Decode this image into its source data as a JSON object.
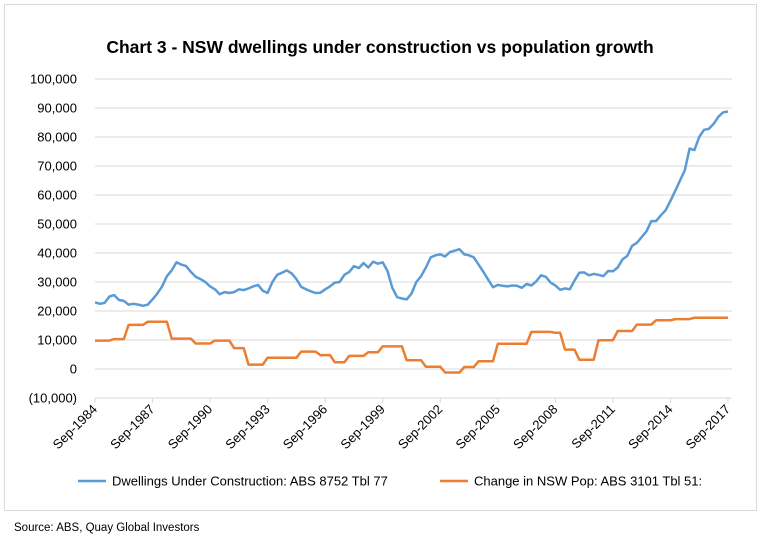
{
  "chart_data": {
    "type": "line",
    "title": "Chart 3 - NSW dwellings under construction vs population growth",
    "source": "Source: ABS, Quay Global Investors",
    "frequency": "quarterly",
    "start": "Sep-1984",
    "end": "Sep-2017",
    "x_tick_labels": [
      "Sep-1984",
      "Sep-1987",
      "Sep-1990",
      "Sep-1993",
      "Sep-1996",
      "Sep-1999",
      "Sep-2002",
      "Sep-2005",
      "Sep-2008",
      "Sep-2011",
      "Sep-2014",
      "Sep-2017"
    ],
    "y_tick_labels": [
      "100,000",
      "90,000",
      "80,000",
      "70,000",
      "60,000",
      "50,000",
      "40,000",
      "30,000",
      "20,000",
      "10,000",
      "0",
      "(10,000)"
    ],
    "ylim": [
      -10000,
      100000
    ],
    "grid": true,
    "legend_position": "bottom",
    "negative_label_color": "#e00000",
    "series": [
      {
        "name": "Dwellings Under Construction: ABS 8752 Tbl 77",
        "color": "#5b9bd5",
        "values": [
          23000,
          22500,
          22800,
          25000,
          25500,
          23800,
          23500,
          22200,
          22500,
          22200,
          21800,
          22200,
          24000,
          26000,
          28500,
          32000,
          34000,
          36800,
          36000,
          35500,
          33500,
          31800,
          31000,
          30000,
          28500,
          27500,
          25800,
          26500,
          26200,
          26500,
          27500,
          27200,
          27800,
          28500,
          29000,
          27000,
          26200,
          30000,
          32500,
          33200,
          34000,
          33000,
          31000,
          28300,
          27500,
          26800,
          26200,
          26300,
          27500,
          28500,
          29800,
          30000,
          32500,
          33500,
          35500,
          34800,
          36500,
          35000,
          37000,
          36300,
          36800,
          33800,
          28000,
          24800,
          24300,
          24000,
          26000,
          30000,
          32000,
          35000,
          38500,
          39200,
          39500,
          38800,
          40300,
          40800,
          41300,
          39500,
          39200,
          38500,
          36000,
          33500,
          30800,
          28200,
          29000,
          28700,
          28500,
          28800,
          28700,
          28000,
          29300,
          28800,
          30200,
          32300,
          31800,
          29800,
          28800,
          27300,
          27800,
          27500,
          30500,
          33200,
          33300,
          32300,
          32800,
          32500,
          32000,
          33800,
          33700,
          35000,
          37800,
          39000,
          42500,
          43500,
          45500,
          47500,
          51000,
          51000,
          53000,
          54800,
          58000,
          61500,
          65000,
          68500,
          76000,
          75500,
          80000,
          82500,
          82800,
          84500,
          87000,
          88500,
          88800
        ]
      },
      {
        "name": "Change in NSW Pop: ABS 3101 Tbl 51:",
        "color": "#ed7d31",
        "values": [
          9800,
          9800,
          9800,
          9800,
          10300,
          10300,
          10300,
          15200,
          15200,
          15200,
          15200,
          16300,
          16300,
          16300,
          16300,
          16300,
          10500,
          10500,
          10500,
          10500,
          10500,
          8800,
          8800,
          8800,
          8800,
          9800,
          9800,
          9800,
          9800,
          7200,
          7200,
          7200,
          1500,
          1500,
          1500,
          1500,
          3900,
          3900,
          3900,
          3900,
          3900,
          3900,
          3900,
          6000,
          6000,
          6000,
          6000,
          4800,
          4800,
          4800,
          2300,
          2300,
          2300,
          4500,
          4500,
          4500,
          4500,
          5800,
          5800,
          5800,
          7800,
          7800,
          7800,
          7800,
          7800,
          3000,
          3000,
          3000,
          3000,
          800,
          800,
          800,
          800,
          -1200,
          -1200,
          -1200,
          -1200,
          700,
          700,
          700,
          2700,
          2700,
          2700,
          2700,
          8700,
          8700,
          8700,
          8700,
          8700,
          8700,
          8700,
          12800,
          12800,
          12800,
          12800,
          12800,
          12500,
          12500,
          6700,
          6700,
          6700,
          3200,
          3200,
          3200,
          3200,
          9900,
          9900,
          9900,
          9900,
          13100,
          13100,
          13100,
          13100,
          15300,
          15300,
          15300,
          15300,
          16800,
          16800,
          16800,
          16800,
          17200,
          17200,
          17200,
          17200,
          17700,
          17700,
          17700,
          17700,
          17700,
          17700,
          17700,
          17700
        ]
      }
    ]
  }
}
